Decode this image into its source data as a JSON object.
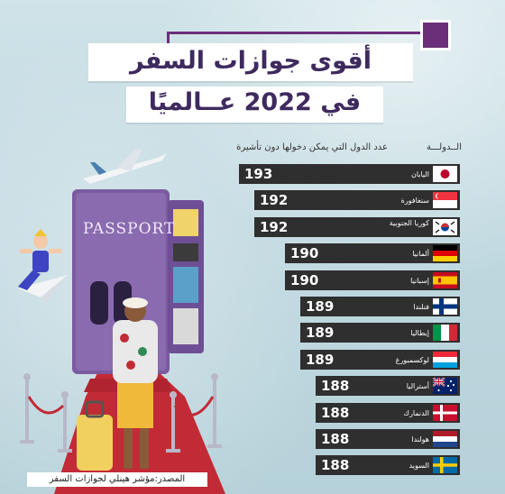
{
  "title": {
    "line1": "أقوى جوازات السفر",
    "line2": "في 2022 عــالميًا"
  },
  "headers": {
    "country": "الــدولـــة",
    "count": "عدد الدول التي يمكن دخولها دون تأشيرة"
  },
  "passport_label": "PASSPORT",
  "source": "المصدر:مؤشر هينلي لجوازات السفر",
  "colors": {
    "bar": "#2f2f2f",
    "accent": "#6b2f7a",
    "title_text": "#3e2a5e",
    "passport": "#7b5aa0"
  },
  "chart_data": {
    "type": "bar",
    "orientation": "horizontal",
    "title": "أقوى جوازات السفر في 2022 عــالميًا",
    "xlabel": "عدد الدول التي يمكن دخولها دون تأشيرة",
    "ylabel": "الــدولـــة",
    "categories": [
      "اليابان",
      "سنغافورة",
      "كوريا الجنوبية",
      "ألمانيا",
      "إسبانيا",
      "فنلندا",
      "إيطاليا",
      "لوكسمبورغ",
      "أستراليا",
      "الدنمارك",
      "هولندا",
      "السويد"
    ],
    "values": [
      193,
      192,
      192,
      190,
      190,
      189,
      189,
      189,
      188,
      188,
      188,
      188
    ],
    "flags": [
      "japan-flag-icon",
      "singapore-flag-icon",
      "south-korea-flag-icon",
      "germany-flag-icon",
      "spain-flag-icon",
      "finland-flag-icon",
      "italy-flag-icon",
      "luxembourg-flag-icon",
      "australia-flag-icon",
      "denmark-flag-icon",
      "netherlands-flag-icon",
      "sweden-flag-icon"
    ]
  }
}
